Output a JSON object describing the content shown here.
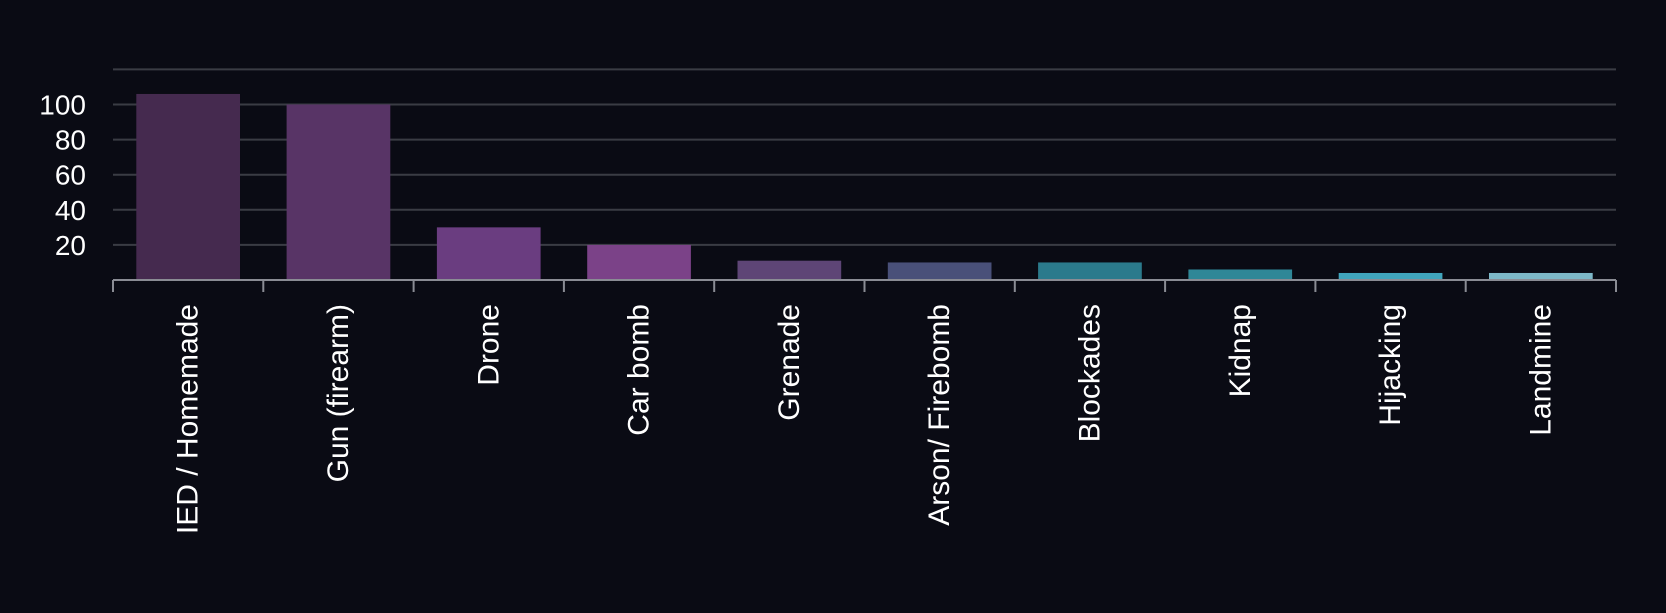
{
  "chart_data": {
    "type": "bar",
    "categories": [
      "IED / Homemade",
      "Gun (firearm)",
      "Drone",
      "Car bomb",
      "Grenade",
      "Arson/ Firebomb",
      "Blockades",
      "Kidnap",
      "Hijacking",
      "Landmine"
    ],
    "values": [
      106,
      100,
      30,
      20,
      11,
      10,
      10,
      6,
      4,
      4
    ],
    "bar_colors": [
      "#452a4f",
      "#583466",
      "#6a3d80",
      "#7b4288",
      "#5e4576",
      "#495079",
      "#2b7a8c",
      "#2f8797",
      "#40a5bd",
      "#7db8c8"
    ],
    "y_ticks": [
      20,
      40,
      60,
      80,
      100
    ],
    "ylim": [
      0,
      120
    ],
    "grid": true,
    "title": "",
    "xlabel": "",
    "ylabel": ""
  },
  "colors": {
    "background": "#0a0b14",
    "gridline": "#3a3c44",
    "axis": "#8a8c94",
    "text": "#ffffff"
  }
}
